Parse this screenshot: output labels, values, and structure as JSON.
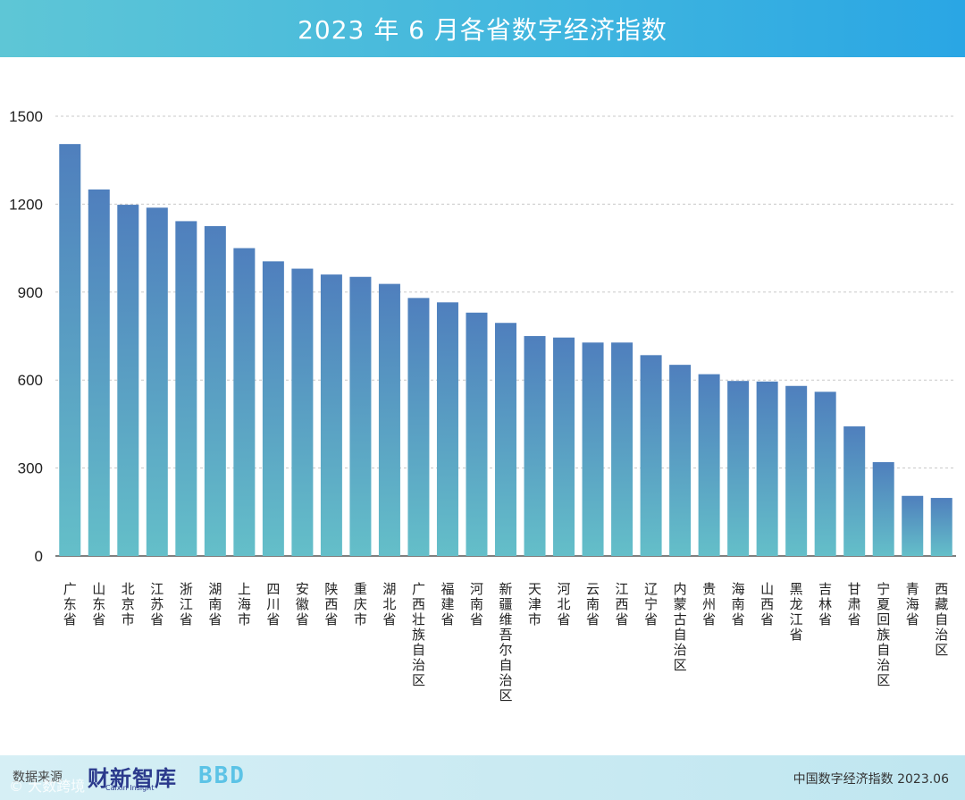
{
  "header": {
    "title": "2023 年 6 月各省数字经济指数"
  },
  "chart_data": {
    "type": "bar",
    "title": "2023 年 6 月各省数字经济指数",
    "xlabel": "",
    "ylabel": "",
    "ylim": [
      0,
      1500
    ],
    "yticks": [
      0,
      300,
      600,
      900,
      1200,
      1500
    ],
    "grid": true,
    "categories": [
      "广东省",
      "山东省",
      "北京市",
      "江苏省",
      "浙江省",
      "湖南省",
      "上海市",
      "四川省",
      "安徽省",
      "陕西省",
      "重庆市",
      "湖北省",
      "广西壮族自治区",
      "福建省",
      "河南省",
      "新疆维吾尔自治区",
      "天津市",
      "河北省",
      "云南省",
      "江西省",
      "辽宁省",
      "内蒙古自治区",
      "贵州省",
      "海南省",
      "山西省",
      "黑龙江省",
      "吉林省",
      "甘肃省",
      "宁夏回族自治区",
      "青海省",
      "西藏自治区"
    ],
    "values": [
      1405,
      1250,
      1198,
      1188,
      1142,
      1125,
      1050,
      1005,
      980,
      960,
      952,
      928,
      880,
      865,
      830,
      795,
      750,
      745,
      728,
      728,
      685,
      652,
      620,
      597,
      595,
      580,
      560,
      442,
      320,
      205,
      198
    ],
    "colors": {
      "bar_top": "#4f7fbd",
      "bar_bottom": "#64bfc9",
      "grid": "#c8c8c8",
      "axis": "#333333"
    }
  },
  "footer": {
    "source_label": "数据来源",
    "logo_text": "财新智库",
    "logo_subtext": "Caixin Insight",
    "mark_text": "BBD",
    "caption": "中国数字经济指数 2023.06"
  },
  "watermark": "© 大数跨境"
}
